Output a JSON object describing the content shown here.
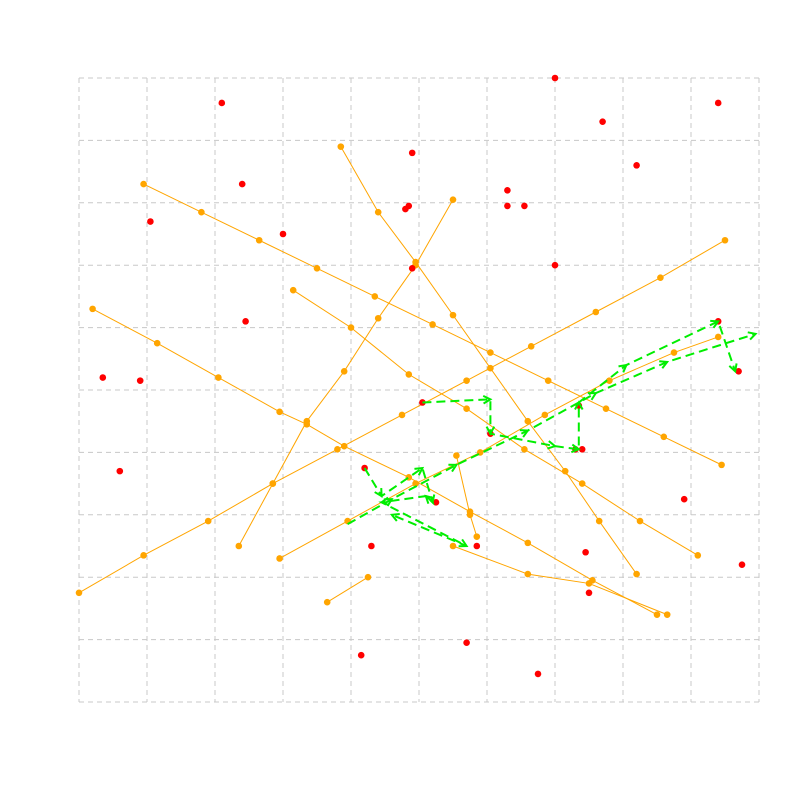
{
  "chart_data": {
    "type": "scatter",
    "title": "",
    "xlabel": "",
    "ylabel": "",
    "xlim": [
      0,
      10
    ],
    "ylim": [
      0,
      10
    ],
    "grid": true,
    "axes_visible": false,
    "colors": {
      "lines": "#ffa500",
      "points": "#ff0000",
      "route": "#00ee00",
      "grid": "#c8c8c8"
    },
    "scatter_points": [
      [
        7.0,
        10.0
      ],
      [
        2.1,
        9.6
      ],
      [
        9.4,
        9.6
      ],
      [
        7.7,
        9.3
      ],
      [
        4.9,
        8.8
      ],
      [
        8.2,
        8.6
      ],
      [
        2.4,
        8.3
      ],
      [
        6.3,
        8.2
      ],
      [
        4.8,
        7.9
      ],
      [
        4.85,
        7.95
      ],
      [
        6.3,
        7.95
      ],
      [
        6.55,
        7.95
      ],
      [
        1.05,
        7.7
      ],
      [
        3.0,
        7.5
      ],
      [
        7.0,
        7.0
      ],
      [
        4.9,
        6.95
      ],
      [
        2.45,
        6.1
      ],
      [
        9.4,
        6.1
      ],
      [
        0.35,
        5.2
      ],
      [
        0.9,
        5.15
      ],
      [
        9.7,
        5.3
      ],
      [
        5.05,
        4.8
      ],
      [
        7.35,
        4.75
      ],
      [
        6.05,
        4.3
      ],
      [
        7.3,
        4.05
      ],
      [
        7.4,
        4.05
      ],
      [
        0.6,
        3.7
      ],
      [
        4.2,
        3.75
      ],
      [
        5.25,
        3.2
      ],
      [
        8.9,
        3.25
      ],
      [
        4.3,
        2.5
      ],
      [
        5.85,
        2.5
      ],
      [
        7.45,
        2.4
      ],
      [
        9.75,
        2.2
      ],
      [
        7.5,
        1.75
      ],
      [
        4.15,
        0.75
      ],
      [
        5.7,
        0.95
      ],
      [
        6.75,
        0.45
      ]
    ],
    "line_series": [
      {
        "points": [
          [
            0.2,
            6.3
          ],
          [
            1.15,
            5.75
          ],
          [
            2.05,
            5.2
          ],
          [
            2.95,
            4.65
          ],
          [
            3.35,
            4.45
          ],
          [
            3.9,
            4.1
          ],
          [
            4.85,
            3.6
          ],
          [
            5.75,
            3.05
          ],
          [
            6.6,
            2.55
          ],
          [
            7.55,
            1.95
          ],
          [
            8.5,
            1.4
          ]
        ]
      },
      {
        "points": [
          [
            0.0,
            1.75
          ],
          [
            0.95,
            2.35
          ],
          [
            1.9,
            2.9
          ],
          [
            2.85,
            3.5
          ],
          [
            3.8,
            4.05
          ],
          [
            4.75,
            4.6
          ],
          [
            5.7,
            5.15
          ],
          [
            6.65,
            5.7
          ],
          [
            7.6,
            6.25
          ],
          [
            8.55,
            6.8
          ],
          [
            9.5,
            7.4
          ]
        ]
      },
      {
        "points": [
          [
            0.95,
            8.3
          ],
          [
            1.8,
            7.85
          ],
          [
            2.65,
            7.4
          ],
          [
            3.5,
            6.95
          ],
          [
            4.35,
            6.5
          ],
          [
            5.2,
            6.05
          ],
          [
            6.05,
            5.6
          ],
          [
            6.9,
            5.15
          ],
          [
            7.75,
            4.7
          ],
          [
            8.6,
            4.25
          ],
          [
            9.45,
            3.8
          ]
        ]
      },
      {
        "points": [
          [
            3.85,
            8.9
          ],
          [
            4.4,
            7.85
          ],
          [
            4.95,
            7.05
          ],
          [
            5.5,
            6.2
          ],
          [
            6.05,
            5.35
          ],
          [
            6.6,
            4.5
          ],
          [
            7.15,
            3.7
          ],
          [
            7.65,
            2.9
          ],
          [
            8.2,
            2.05
          ]
        ]
      },
      {
        "points": [
          [
            2.35,
            2.5
          ],
          [
            2.85,
            3.5
          ],
          [
            3.35,
            4.5
          ],
          [
            3.9,
            5.3
          ],
          [
            4.4,
            6.15
          ],
          [
            4.95,
            7.0
          ],
          [
            5.5,
            8.05
          ]
        ]
      },
      {
        "points": [
          [
            3.15,
            6.6
          ],
          [
            4.0,
            6.0
          ],
          [
            4.85,
            5.25
          ],
          [
            5.7,
            4.7
          ],
          [
            6.55,
            4.05
          ],
          [
            7.4,
            3.5
          ],
          [
            8.25,
            2.9
          ],
          [
            9.1,
            2.35
          ]
        ]
      },
      {
        "points": [
          [
            2.95,
            2.3
          ],
          [
            3.95,
            2.9
          ],
          [
            4.95,
            3.5
          ],
          [
            5.9,
            4.0
          ],
          [
            6.85,
            4.6
          ],
          [
            7.8,
            5.15
          ],
          [
            8.75,
            5.6
          ],
          [
            9.4,
            5.85
          ]
        ]
      },
      {
        "points": [
          [
            5.55,
            3.95
          ],
          [
            5.75,
            3.0
          ],
          [
            5.85,
            2.65
          ]
        ]
      },
      {
        "points": [
          [
            3.65,
            1.6
          ],
          [
            4.25,
            2.0
          ]
        ]
      },
      {
        "points": [
          [
            5.5,
            2.5
          ],
          [
            6.6,
            2.05
          ],
          [
            7.5,
            1.9
          ],
          [
            8.65,
            1.4
          ]
        ]
      }
    ],
    "route_series": [
      {
        "points": [
          [
            3.95,
            2.85
          ],
          [
            4.6,
            3.25
          ],
          [
            5.55,
            3.8
          ],
          [
            6.6,
            4.35
          ],
          [
            7.6,
            4.95
          ],
          [
            8.65,
            5.45
          ],
          [
            9.95,
            5.9
          ]
        ]
      },
      {
        "points": [
          [
            4.2,
            3.75
          ],
          [
            4.45,
            3.3
          ],
          [
            5.05,
            3.75
          ],
          [
            5.2,
            3.2
          ],
          [
            5.1,
            3.3
          ],
          [
            4.45,
            3.2
          ],
          [
            5.7,
            2.5
          ],
          [
            4.6,
            3.0
          ]
        ]
      },
      {
        "points": [
          [
            5.05,
            4.8
          ],
          [
            6.05,
            4.85
          ],
          [
            6.05,
            4.3
          ],
          [
            7.0,
            4.1
          ],
          [
            7.35,
            4.05
          ],
          [
            7.35,
            4.8
          ],
          [
            8.05,
            5.4
          ],
          [
            9.4,
            6.1
          ],
          [
            9.65,
            5.3
          ]
        ]
      }
    ]
  }
}
